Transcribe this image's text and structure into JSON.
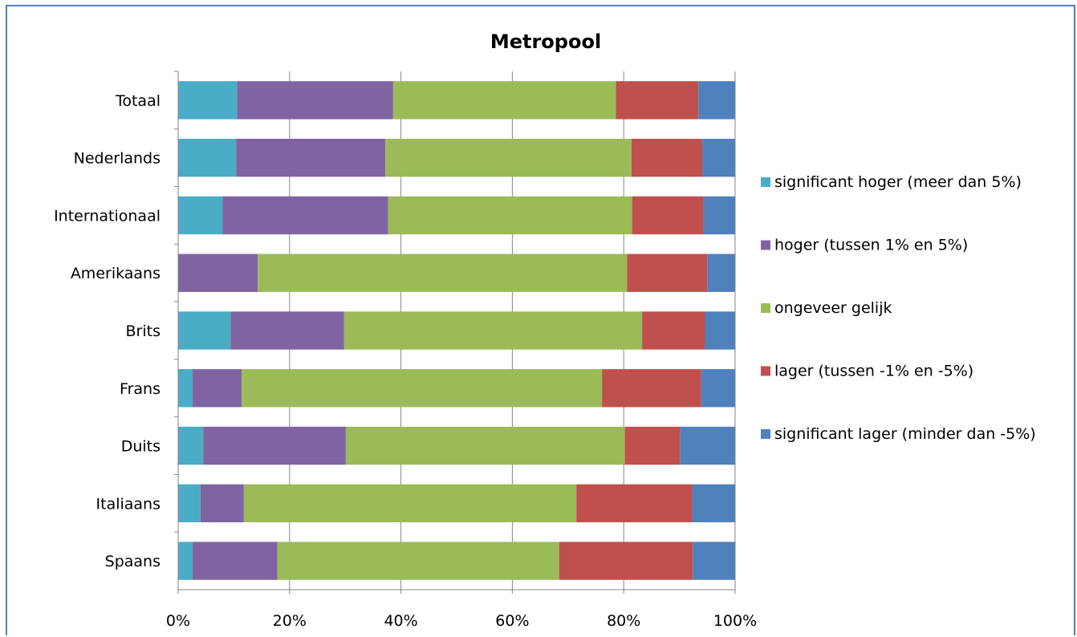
{
  "chart_data": {
    "type": "bar",
    "orientation": "horizontal",
    "stacked": "percent",
    "title": "Metropool",
    "categories": [
      "Totaal",
      "Nederlands",
      "Internationaal",
      "Amerikaans",
      "Brits",
      "Frans",
      "Duits",
      "Italiaans",
      "Spaans"
    ],
    "series": [
      {
        "name": "significant hoger (meer dan 5%)",
        "color": "#4bacc6",
        "values": [
          10.6,
          10.4,
          8.0,
          0.0,
          9.4,
          2.6,
          4.5,
          4.0,
          2.6
        ]
      },
      {
        "name": "hoger (tussen 1% en 5%)",
        "color": "#8064a2",
        "values": [
          28.0,
          26.8,
          29.7,
          14.3,
          20.4,
          8.8,
          25.6,
          7.8,
          15.2
        ]
      },
      {
        "name": "ongeveer gelijk",
        "color": "#9bbb59",
        "values": [
          40.0,
          44.2,
          43.8,
          66.3,
          53.5,
          64.7,
          50.1,
          59.7,
          50.6
        ]
      },
      {
        "name": "lager (tussen -1% en -5%)",
        "color": "#c0504d",
        "values": [
          14.8,
          12.7,
          12.8,
          14.4,
          11.3,
          17.8,
          9.9,
          20.8,
          24.0
        ]
      },
      {
        "name": "significant lager (minder dan -5%)",
        "color": "#4f81bd",
        "values": [
          6.6,
          5.9,
          5.7,
          5.0,
          5.4,
          6.1,
          9.9,
          7.7,
          7.6
        ]
      }
    ],
    "x_ticks": [
      "0%",
      "20%",
      "40%",
      "60%",
      "80%",
      "100%"
    ],
    "xlim": [
      0,
      100
    ],
    "grid": "vertical",
    "legend_position": "right"
  }
}
